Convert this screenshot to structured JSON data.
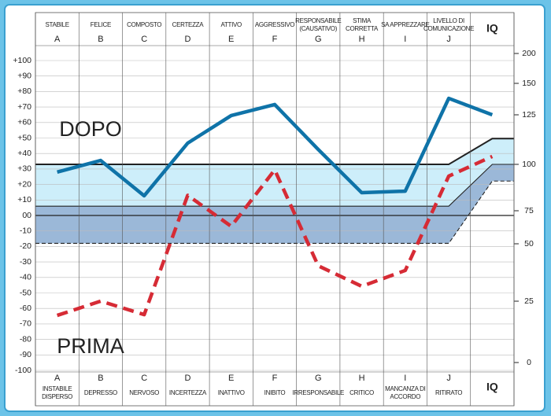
{
  "chart_data": {
    "type": "line",
    "categories": [
      "A",
      "B",
      "C",
      "D",
      "E",
      "F",
      "G",
      "H",
      "I",
      "J"
    ],
    "iq_label": "IQ",
    "top_labels": [
      [
        "STABILE"
      ],
      [
        "FELICE"
      ],
      [
        "COMPOSTO"
      ],
      [
        "CERTEZZA"
      ],
      [
        "ATTIVO"
      ],
      [
        "AGGRESSIVO"
      ],
      [
        "RESPONSABILE",
        "(CAUSATIVO)"
      ],
      [
        "STIMA",
        "CORRETTA"
      ],
      [
        "SA APPREZZARE"
      ],
      [
        "LIVELLO DI",
        "COMUNICAZIONE"
      ]
    ],
    "bottom_labels": [
      [
        "INSTABILE",
        "DISPERSO"
      ],
      [
        "DEPRESSO"
      ],
      [
        "NERVOSO"
      ],
      [
        "INCERTEZZA"
      ],
      [
        "INATTIVO"
      ],
      [
        "INIBITO"
      ],
      [
        "IRRESPONSABILE"
      ],
      [
        "CRITICO"
      ],
      [
        "MANCANZA DI",
        "ACCORDO"
      ],
      [
        "RITIRATO"
      ]
    ],
    "series": [
      {
        "name": "DOPO",
        "color": "#0f73a8",
        "dashed": false,
        "values": [
          28,
          35.5,
          12.7,
          46.7,
          64.5,
          71.6,
          42.6,
          14.7,
          15.7,
          75.6
        ],
        "iq": 125
      },
      {
        "name": "PRIMA",
        "color": "#d62b35",
        "dashed": true,
        "values": [
          -64.5,
          -55.3,
          -64,
          13,
          -7,
          29.4,
          -32.5,
          -45.7,
          -35.5,
          25.4
        ],
        "iq": 104
      }
    ],
    "reference_lines": [
      {
        "value": 33,
        "iq": 113
      },
      {
        "value": 6,
        "iq": 100
      },
      {
        "value": -18,
        "iq": 91
      }
    ],
    "ylim": [
      -100,
      100
    ],
    "yticks": [
      {
        "value": 100,
        "label": "+100"
      },
      {
        "value": 90,
        "label": "+90"
      },
      {
        "value": 80,
        "label": "+80"
      },
      {
        "value": 70,
        "label": "+70"
      },
      {
        "value": 60,
        "label": "+60"
      },
      {
        "value": 50,
        "label": "+50"
      },
      {
        "value": 40,
        "label": "+40"
      },
      {
        "value": 30,
        "label": "+30"
      },
      {
        "value": 20,
        "label": "+20"
      },
      {
        "value": 10,
        "label": "+10"
      },
      {
        "value": 0,
        "label": "00"
      },
      -10,
      -20,
      -30,
      -40,
      -50,
      -60,
      -70,
      -80,
      -90,
      -100
    ],
    "y2ticks": [
      0,
      25,
      50,
      75,
      100,
      125,
      150,
      200
    ],
    "grid": true
  }
}
